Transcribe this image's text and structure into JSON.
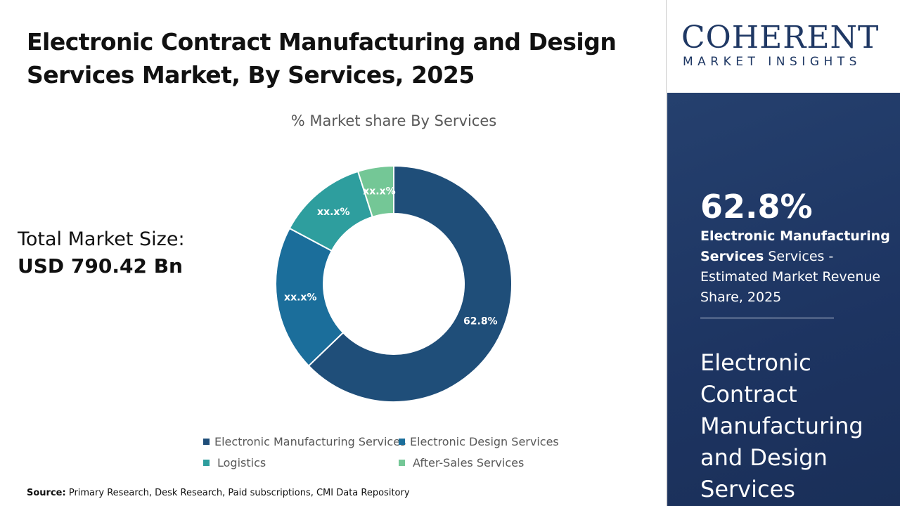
{
  "title": "Electronic Contract Manufacturing and Design Services Market, By Services, 2025",
  "total_market": {
    "label": "Total Market Size:",
    "value": "USD 790.42 Bn"
  },
  "source": {
    "label": "Source:",
    "text": "Primary Research, Desk Research, Paid subscriptions, CMI Data Repository"
  },
  "logo": {
    "main": "COHERENT",
    "sub": "MARKET INSIGHTS"
  },
  "highlight": {
    "value": "62.8%",
    "bold": "Electronic Manufacturing Services",
    "rest": " Services - Estimated Market Revenue Share, 2025",
    "market_name": "Electronic Contract Manufacturing and Design Services"
  },
  "chart_data": {
    "type": "pie",
    "donut": true,
    "title": "% Market share By Services",
    "legend_position": "bottom",
    "categories": [
      "Electronic Manufacturing Services",
      "Electronic Design Services",
      "Logistics",
      "After-Sales Services"
    ],
    "values": [
      62.8,
      20.0,
      12.3,
      4.9
    ],
    "data_labels": [
      "62.8%",
      "xx.x%",
      "xx.x%",
      "xx.x%"
    ],
    "colors": [
      "#1f4e79",
      "#1b6e9b",
      "#2e9e9e",
      "#74c796"
    ]
  }
}
